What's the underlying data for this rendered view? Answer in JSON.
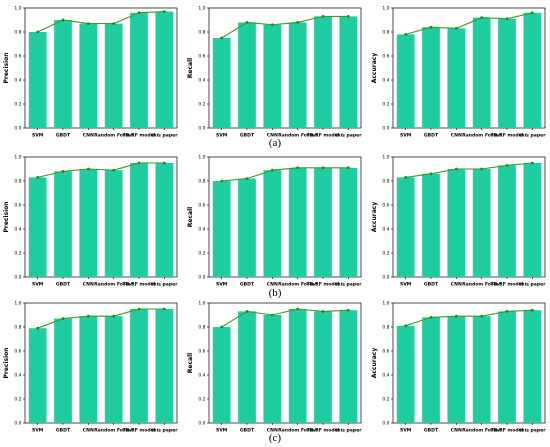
{
  "colors": {
    "bar": "#1fcea0",
    "line": "#3a9a2a",
    "marker": "#2f7f22",
    "axis": "#000000"
  },
  "panel_labels": [
    "(a)",
    "(b)",
    "(c)"
  ],
  "chart_data": [
    {
      "type": "bar",
      "ylabel": "Precision",
      "ylim": [
        0,
        1.0
      ],
      "yticks": [
        "0.0",
        "0.2",
        "0.4",
        "0.6",
        "0.8",
        "1.0"
      ],
      "categories": [
        "SVM",
        "GBDT",
        "CNN",
        "Random Forest",
        "TB-RF model",
        "this paper"
      ],
      "values": [
        0.8,
        0.9,
        0.87,
        0.87,
        0.96,
        0.97
      ]
    },
    {
      "type": "bar",
      "ylabel": "Recall",
      "ylim": [
        0,
        1.0
      ],
      "yticks": [
        "0.0",
        "0.2",
        "0.4",
        "0.6",
        "0.8",
        "1.0"
      ],
      "categories": [
        "SVM",
        "GBDT",
        "CNN",
        "Random Forest",
        "TB-RF model",
        "this paper"
      ],
      "values": [
        0.75,
        0.88,
        0.86,
        0.88,
        0.93,
        0.93
      ]
    },
    {
      "type": "bar",
      "ylabel": "Accuracy",
      "ylim": [
        0,
        1.0
      ],
      "yticks": [
        "0.0",
        "0.2",
        "0.4",
        "0.6",
        "0.8",
        "1.0"
      ],
      "categories": [
        "SVM",
        "GBDT",
        "CNN",
        "Random Forest",
        "TB-RF model",
        "this paper"
      ],
      "values": [
        0.78,
        0.84,
        0.83,
        0.92,
        0.91,
        0.96
      ]
    },
    {
      "type": "bar",
      "ylabel": "Precision",
      "ylim": [
        0,
        1.0
      ],
      "yticks": [
        "0.0",
        "0.2",
        "0.4",
        "0.6",
        "0.8",
        "1.0"
      ],
      "categories": [
        "SVM",
        "GBDT",
        "CNN",
        "Random Forest",
        "TB-RF model",
        "this paper"
      ],
      "values": [
        0.83,
        0.88,
        0.9,
        0.89,
        0.95,
        0.95
      ]
    },
    {
      "type": "bar",
      "ylabel": "Recall",
      "ylim": [
        0,
        1.0
      ],
      "yticks": [
        "0.0",
        "0.2",
        "0.4",
        "0.6",
        "0.8",
        "1.0"
      ],
      "categories": [
        "SVM",
        "GBDT",
        "CNN",
        "Random Forest",
        "TB-RF model",
        "this paper"
      ],
      "values": [
        0.8,
        0.82,
        0.89,
        0.91,
        0.91,
        0.91
      ]
    },
    {
      "type": "bar",
      "ylabel": "Accuracy",
      "ylim": [
        0,
        1.0
      ],
      "yticks": [
        "0.0",
        "0.2",
        "0.4",
        "0.6",
        "0.8",
        "1.0"
      ],
      "categories": [
        "SVM",
        "GBDT",
        "CNN",
        "Random Forest",
        "TB-RF model",
        "this paper"
      ],
      "values": [
        0.83,
        0.86,
        0.9,
        0.9,
        0.93,
        0.95
      ]
    },
    {
      "type": "bar",
      "ylabel": "Precision",
      "ylim": [
        0,
        1.0
      ],
      "yticks": [
        "0.0",
        "0.2",
        "0.4",
        "0.6",
        "0.8",
        "1.0"
      ],
      "categories": [
        "SVM",
        "GBDT",
        "CNN",
        "Random Forest",
        "TB-RF model",
        "this paper"
      ],
      "values": [
        0.79,
        0.87,
        0.89,
        0.89,
        0.95,
        0.95
      ]
    },
    {
      "type": "bar",
      "ylabel": "Recall",
      "ylim": [
        0,
        1.0
      ],
      "yticks": [
        "0.0",
        "0.2",
        "0.4",
        "0.6",
        "0.8",
        "1.0"
      ],
      "categories": [
        "SVM",
        "GBDT",
        "CNN",
        "Random Forest",
        "TB-RF model",
        "this paper"
      ],
      "values": [
        0.8,
        0.93,
        0.9,
        0.95,
        0.93,
        0.94
      ]
    },
    {
      "type": "bar",
      "ylabel": "Accuracy",
      "ylim": [
        0,
        1.0
      ],
      "yticks": [
        "0.0",
        "0.2",
        "0.4",
        "0.6",
        "0.8",
        "1.0"
      ],
      "categories": [
        "SVM",
        "GBDT",
        "CNN",
        "Random Forest",
        "TB-RF model",
        "this paper"
      ],
      "values": [
        0.81,
        0.88,
        0.89,
        0.89,
        0.93,
        0.94
      ]
    }
  ]
}
